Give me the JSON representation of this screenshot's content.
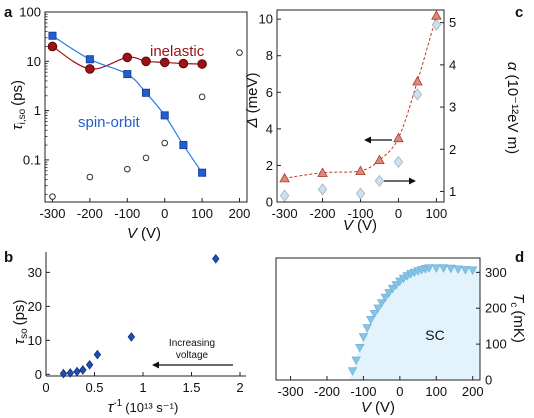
{
  "chart_data": [
    {
      "panel": "a",
      "type": "scatter",
      "ylabel": "τ",
      "ylabel_sub": "i,so",
      "ylabel_unit": "(ps)",
      "xlabel": "V",
      "xlabel_unit": "(V)",
      "yscale": "log",
      "xlim": [
        -320,
        220
      ],
      "ylim": [
        0.014,
        100
      ],
      "xticks": [
        "-300",
        "-200",
        "-100",
        "0",
        "100",
        "200"
      ],
      "yticks": [
        "100",
        "10",
        "1",
        "0.1"
      ],
      "annotations": {
        "inelastic": "inelastic",
        "spin_orbit": "spin-orbit"
      },
      "colors": {
        "inelastic": "#9b1313",
        "spin_orbit": "#1f5fd0",
        "open": "#333333"
      },
      "series": [
        {
          "name": "inelastic",
          "marker": "circle",
          "x": [
            -300,
            -200,
            -100,
            -50,
            0,
            50,
            100
          ],
          "y": [
            20,
            7,
            12,
            10,
            9.5,
            9,
            8.8
          ]
        },
        {
          "name": "spin-orbit",
          "marker": "square",
          "x": [
            -300,
            -200,
            -100,
            -50,
            0,
            50,
            100
          ],
          "y": [
            33,
            11,
            5.5,
            2.3,
            0.8,
            0.2,
            0.055
          ]
        },
        {
          "marker": "open-circle",
          "x": [
            -300,
            -200,
            -100,
            -50,
            0,
            100,
            200
          ],
          "y": [
            0.018,
            0.045,
            0.065,
            0.11,
            0.22,
            1.9,
            15
          ]
        }
      ]
    },
    {
      "panel": "c",
      "type": "scatter",
      "ylabel_left": "Δ",
      "ylabel_left_unit": "(meV)",
      "ylabel_right": "α",
      "ylabel_right_unit": "(10⁻¹²eV m)",
      "xlabel": "V",
      "xlabel_unit": "(V)",
      "xlim": [
        -320,
        120
      ],
      "ylim_left": [
        0,
        10.5
      ],
      "ylim_right": [
        0.75,
        5.3
      ],
      "xticks": [
        "-300",
        "-200",
        "-100",
        "0",
        "100"
      ],
      "yticks_left": [
        "0",
        "2",
        "4",
        "6",
        "8",
        "10"
      ],
      "yticks_right": [
        "1",
        "2",
        "3",
        "4",
        "5"
      ],
      "colors": {
        "delta": "#d98a80",
        "delta_edge": "#b03a2e",
        "alpha": "#cfe0ec",
        "alpha_edge": "#9bb3c6"
      },
      "series": [
        {
          "marker": "triangle",
          "axis": "left",
          "x": [
            -300,
            -200,
            -100,
            -50,
            0,
            50,
            100
          ],
          "y": [
            1.3,
            1.6,
            1.7,
            2.3,
            3.5,
            6.6,
            10.2
          ]
        },
        {
          "marker": "diamond",
          "axis": "right",
          "x": [
            -300,
            -200,
            -100,
            -50,
            0,
            50,
            100
          ],
          "y": [
            0.9,
            1.05,
            0.95,
            1.25,
            1.7,
            3.3,
            4.95
          ]
        }
      ]
    },
    {
      "panel": "b",
      "type": "scatter",
      "ylabel": "τ",
      "ylabel_sub": "so",
      "ylabel_unit": "(ps)",
      "xlabel": "τ",
      "xlabel_sup": "-1",
      "xlabel_unit": "(10¹³ s⁻¹)",
      "xlim": [
        0,
        2
      ],
      "ylim": [
        -0.5,
        36
      ],
      "xticks": [
        "0",
        "0.5",
        "1",
        "1.5",
        "2"
      ],
      "yticks": [
        "0",
        "10",
        "20",
        "30"
      ],
      "annotation": [
        "Increasing",
        "voltage"
      ],
      "colors": {
        "points": "#1f4fb5"
      },
      "series": [
        {
          "marker": "diamond",
          "x": [
            0.18,
            0.25,
            0.32,
            0.38,
            0.45,
            0.53,
            0.88,
            1.75
          ],
          "y": [
            0.2,
            0.4,
            0.8,
            1.3,
            2.8,
            5.8,
            11,
            34
          ]
        }
      ]
    },
    {
      "panel": "d",
      "type": "area",
      "ylabel": "T",
      "ylabel_sub": "c",
      "ylabel_unit": "(mK)",
      "xlabel": "V",
      "xlabel_unit": "(V)",
      "xlim": [
        -340,
        220
      ],
      "ylim": [
        0,
        340
      ],
      "xticks": [
        "-300",
        "-200",
        "-100",
        "0",
        "100",
        "200"
      ],
      "yticks": [
        "0",
        "100",
        "200",
        "300"
      ],
      "region_label": "SC",
      "colors": {
        "fill": "#e3f3fb",
        "points": "#86c4e6"
      },
      "series": [
        {
          "marker": "triangle-down",
          "x": [
            -130,
            -120,
            -110,
            -100,
            -90,
            -80,
            -70,
            -60,
            -50,
            -40,
            -30,
            -20,
            -10,
            0,
            10,
            20,
            30,
            40,
            50,
            60,
            70,
            80,
            100,
            120,
            140,
            160,
            180,
            200
          ],
          "y": [
            25,
            55,
            90,
            120,
            145,
            168,
            185,
            200,
            215,
            230,
            243,
            255,
            265,
            275,
            283,
            290,
            296,
            300,
            304,
            307,
            310,
            312,
            312,
            312,
            311,
            309,
            307,
            306
          ]
        }
      ]
    }
  ]
}
